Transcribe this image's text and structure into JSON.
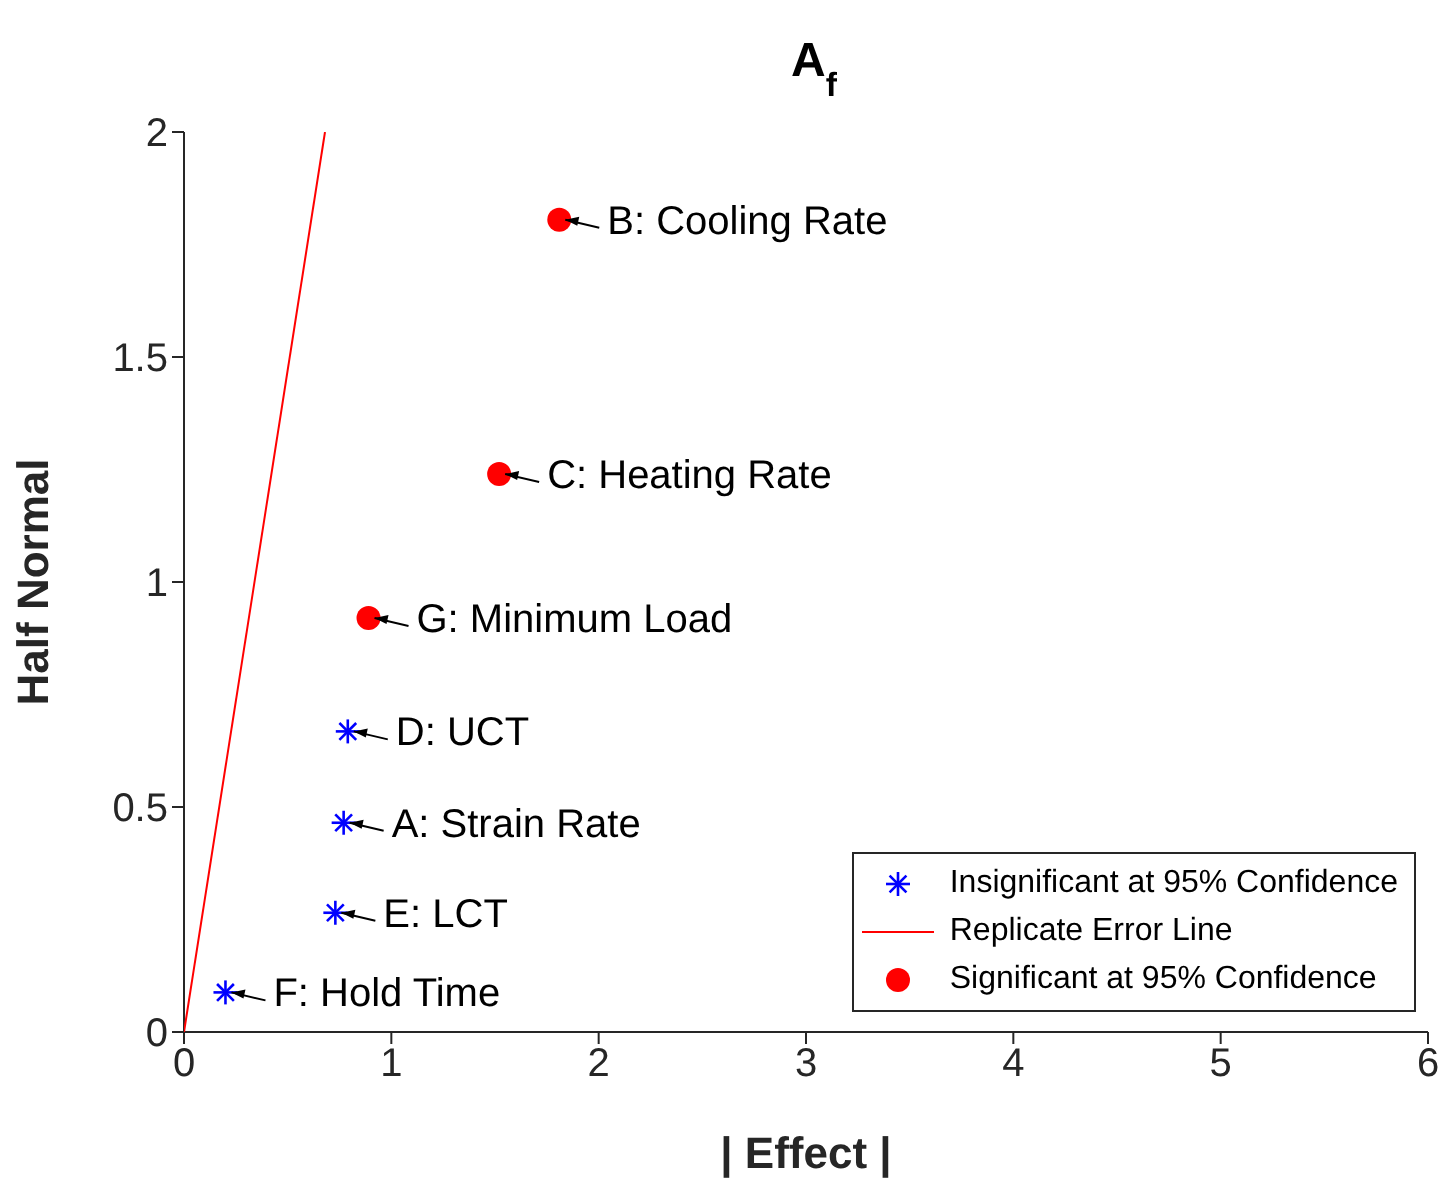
{
  "chart_data": {
    "type": "scatter",
    "title": "A$_{f}$",
    "xlabel": "| Effect |",
    "ylabel": "Half Normal",
    "xlim": [
      0,
      6
    ],
    "xticks": [
      0,
      1,
      2,
      3,
      4,
      5,
      6
    ],
    "ylim": [
      0,
      2
    ],
    "yticks": [
      0,
      0.5,
      1,
      1.5,
      2
    ],
    "grid": false,
    "legend": "bottom right",
    "series": [
      {
        "name": "Insignificant at 95% Confidence",
        "marker": "cross",
        "color": "#0000ff",
        "x": [
          0.79,
          0.77,
          0.73,
          0.2
        ],
        "values": [
          0.668,
          0.465,
          0.265,
          0.088
        ]
      },
      {
        "name": "Replicate Error Line",
        "type": "line",
        "marker": "none",
        "color": "#ff0000",
        "x": [
          0,
          0.68
        ],
        "values": [
          0,
          2
        ]
      },
      {
        "name": "Significant at 95% Confidence",
        "marker": "circle",
        "color": "#ff0000",
        "x": [
          1.81,
          1.52,
          0.89
        ],
        "values": [
          1.805,
          1.24,
          0.92
        ]
      }
    ],
    "annotations": [
      {
        "text": "B: Cooling Rate",
        "x": 1.81,
        "y": 1.805
      },
      {
        "text": "C: Heating Rate",
        "x": 1.52,
        "y": 1.24
      },
      {
        "text": "G: Minimum Load",
        "x": 0.89,
        "y": 0.92
      },
      {
        "text": "D: UCT",
        "x": 0.79,
        "y": 0.668
      },
      {
        "text": "A: Strain Rate",
        "x": 0.77,
        "y": 0.465
      },
      {
        "text": "E: LCT",
        "x": 0.73,
        "y": 0.265
      },
      {
        "text": "F: Hold Time",
        "x": 0.2,
        "y": 0.088
      }
    ]
  }
}
